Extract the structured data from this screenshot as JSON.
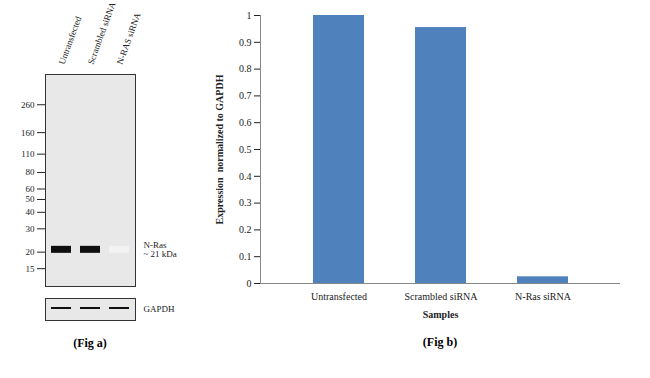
{
  "chart_data": {
    "type": "bar",
    "categories": [
      "Untransfected",
      "Scrambled siRNA",
      "N-Ras siRNA"
    ],
    "values": [
      1,
      0.955,
      0.025
    ],
    "color": "#4f81bd",
    "xlabel": "Samples",
    "ylabel": "Expression  normalized to GAPDH",
    "ylim": [
      0,
      1
    ],
    "yticks": [
      0,
      0.1,
      0.2,
      0.3,
      0.4,
      0.5,
      0.6,
      0.7,
      0.8,
      0.9,
      1
    ],
    "grid": false,
    "caption": "(Fig b)"
  },
  "blot": {
    "lanes": [
      "Untransfected",
      "Scrambled siRNA",
      "N-RAS siRNA"
    ],
    "markers": [
      260,
      160,
      110,
      80,
      60,
      50,
      40,
      30,
      20,
      15
    ],
    "ylim": [
      11,
      440
    ],
    "band": {
      "label": [
        "N-Ras",
        "~ 21 kDa"
      ],
      "kda": 21,
      "intensity": [
        1,
        1,
        0
      ]
    },
    "loading_control": {
      "label": "GAPDH",
      "intensity": [
        1,
        1,
        1
      ]
    },
    "caption": "(Fig a)"
  }
}
